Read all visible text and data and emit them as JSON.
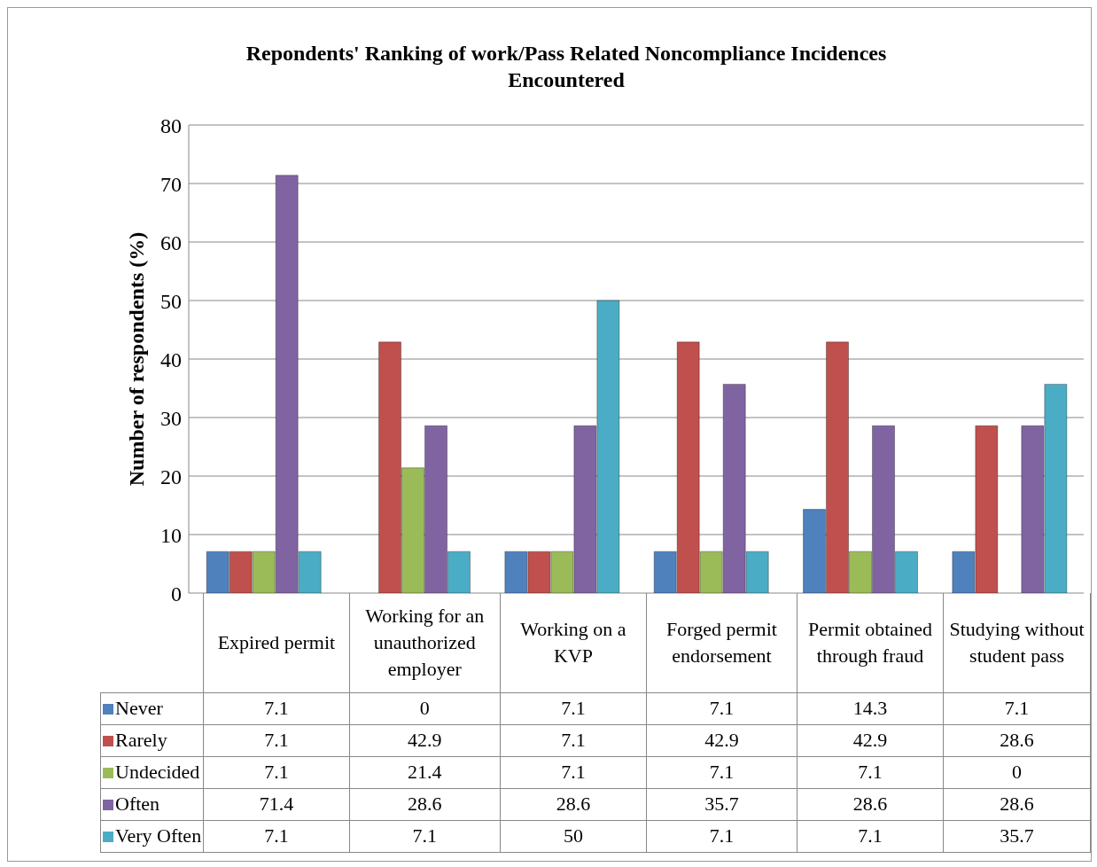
{
  "chart_data": {
    "type": "bar",
    "title": "Repondents' Ranking of work/Pass Related Noncompliance Incidences Encountered",
    "ylabel": "Number of respondents (%)",
    "categories": [
      "Expired permit",
      "Working for an unauthorized employer",
      "Working on a KVP",
      "Forged permit endorsement",
      "Permit obtained through fraud",
      "Studying without student  pass"
    ],
    "series": [
      {
        "name": "Never",
        "color": "#4f81bd",
        "values": [
          7.1,
          0,
          7.1,
          7.1,
          14.3,
          7.1
        ]
      },
      {
        "name": "Rarely",
        "color": "#c0504d",
        "values": [
          7.1,
          42.9,
          7.1,
          42.9,
          42.9,
          28.6
        ]
      },
      {
        "name": "Undecided",
        "color": "#9bbb59",
        "values": [
          7.1,
          21.4,
          7.1,
          7.1,
          7.1,
          0
        ]
      },
      {
        "name": "Often",
        "color": "#8064a2",
        "values": [
          71.4,
          28.6,
          28.6,
          35.7,
          28.6,
          28.6
        ]
      },
      {
        "name": "Very Often",
        "color": "#4bacc6",
        "values": [
          7.1,
          7.1,
          50,
          7.1,
          7.1,
          35.7
        ]
      }
    ],
    "ylim": [
      0,
      80
    ],
    "yticks": [
      0,
      10,
      20,
      30,
      40,
      50,
      60,
      70,
      80
    ],
    "grid": "y",
    "legend": "bottom",
    "data_labels": true
  }
}
